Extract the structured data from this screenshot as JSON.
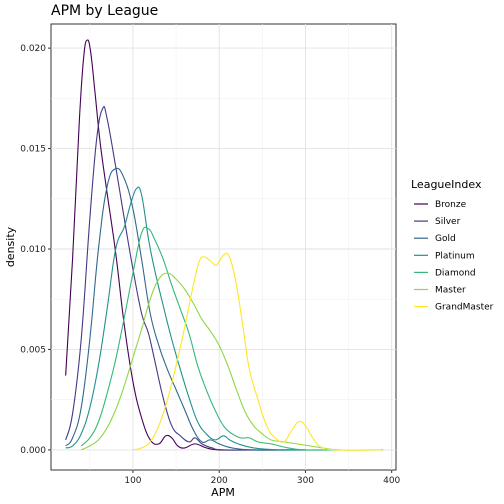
{
  "chart_data": {
    "type": "line",
    "title": "APM by League",
    "xlabel": "APM",
    "ylabel": "density",
    "xlim": [
      5,
      405
    ],
    "ylim": [
      -0.001,
      0.0212
    ],
    "xticks": [
      100,
      200,
      300,
      400
    ],
    "yticks": [
      0.0,
      0.005,
      0.01,
      0.015,
      0.02
    ],
    "ytick_labels": [
      "0.000",
      "0.005",
      "0.010",
      "0.015",
      "0.020"
    ],
    "grid": true,
    "legend": {
      "title": "LeagueIndex",
      "position": "right"
    },
    "series": [
      {
        "name": "Bronze",
        "color": "#440154",
        "points": [
          [
            22,
            0.0037
          ],
          [
            30,
            0.0095
          ],
          [
            38,
            0.0165
          ],
          [
            43,
            0.0196
          ],
          [
            47,
            0.0204
          ],
          [
            51,
            0.0198
          ],
          [
            56,
            0.0178
          ],
          [
            62,
            0.0153
          ],
          [
            70,
            0.0128
          ],
          [
            80,
            0.0098
          ],
          [
            90,
            0.0062
          ],
          [
            100,
            0.0034
          ],
          [
            110,
            0.0016
          ],
          [
            120,
            0.0005
          ],
          [
            130,
            0.0003
          ],
          [
            138,
            0.0007
          ],
          [
            145,
            0.0006
          ],
          [
            152,
            0.0002
          ],
          [
            160,
            0.0001
          ],
          [
            172,
            0.0003
          ],
          [
            185,
            0.0001
          ],
          [
            200,
            0.0
          ],
          [
            230,
            0.0
          ],
          [
            300,
            0.0
          ]
        ]
      },
      {
        "name": "Silver",
        "color": "#443983",
        "points": [
          [
            22,
            0.0005
          ],
          [
            30,
            0.0018
          ],
          [
            40,
            0.0055
          ],
          [
            50,
            0.0115
          ],
          [
            58,
            0.0155
          ],
          [
            65,
            0.017
          ],
          [
            70,
            0.0165
          ],
          [
            80,
            0.0141
          ],
          [
            90,
            0.0115
          ],
          [
            100,
            0.009
          ],
          [
            110,
            0.0068
          ],
          [
            118,
            0.0058
          ],
          [
            125,
            0.0045
          ],
          [
            135,
            0.0026
          ],
          [
            145,
            0.0012
          ],
          [
            155,
            0.0007
          ],
          [
            165,
            0.0004
          ],
          [
            172,
            0.0006
          ],
          [
            180,
            0.0003
          ],
          [
            192,
            0.0001
          ],
          [
            210,
            0.0
          ],
          [
            300,
            0.0
          ]
        ]
      },
      {
        "name": "Gold",
        "color": "#31688e",
        "points": [
          [
            22,
            0.0002
          ],
          [
            30,
            0.0006
          ],
          [
            40,
            0.0021
          ],
          [
            50,
            0.0055
          ],
          [
            60,
            0.01
          ],
          [
            70,
            0.0131
          ],
          [
            80,
            0.014
          ],
          [
            90,
            0.0135
          ],
          [
            100,
            0.012
          ],
          [
            110,
            0.0095
          ],
          [
            120,
            0.0068
          ],
          [
            130,
            0.0052
          ],
          [
            140,
            0.004
          ],
          [
            150,
            0.003
          ],
          [
            160,
            0.002
          ],
          [
            170,
            0.001
          ],
          [
            180,
            0.0004
          ],
          [
            190,
            0.0005
          ],
          [
            200,
            0.0003
          ],
          [
            215,
            0.0001
          ],
          [
            240,
            0.0
          ],
          [
            300,
            0.0
          ]
        ]
      },
      {
        "name": "Platinum",
        "color": "#21918c",
        "points": [
          [
            22,
            0.0001
          ],
          [
            30,
            0.0002
          ],
          [
            40,
            0.0008
          ],
          [
            50,
            0.0021
          ],
          [
            60,
            0.0042
          ],
          [
            70,
            0.007
          ],
          [
            80,
            0.01
          ],
          [
            90,
            0.0111
          ],
          [
            97,
            0.0122
          ],
          [
            104,
            0.013
          ],
          [
            110,
            0.0127
          ],
          [
            118,
            0.0105
          ],
          [
            125,
            0.009
          ],
          [
            135,
            0.0072
          ],
          [
            145,
            0.0055
          ],
          [
            155,
            0.004
          ],
          [
            165,
            0.0026
          ],
          [
            175,
            0.0014
          ],
          [
            185,
            0.0008
          ],
          [
            195,
            0.0005
          ],
          [
            205,
            0.0007
          ],
          [
            212,
            0.0005
          ],
          [
            222,
            0.0003
          ],
          [
            240,
            0.0001
          ],
          [
            270,
            0.0
          ],
          [
            320,
            0.0
          ]
        ]
      },
      {
        "name": "Diamond",
        "color": "#35b779",
        "points": [
          [
            40,
            0.0002
          ],
          [
            50,
            0.0006
          ],
          [
            60,
            0.0014
          ],
          [
            70,
            0.0028
          ],
          [
            80,
            0.0045
          ],
          [
            90,
            0.0066
          ],
          [
            100,
            0.0088
          ],
          [
            110,
            0.0108
          ],
          [
            118,
            0.011
          ],
          [
            125,
            0.0105
          ],
          [
            135,
            0.0095
          ],
          [
            145,
            0.0082
          ],
          [
            155,
            0.007
          ],
          [
            165,
            0.0058
          ],
          [
            175,
            0.0042
          ],
          [
            185,
            0.003
          ],
          [
            195,
            0.002
          ],
          [
            205,
            0.0012
          ],
          [
            215,
            0.0008
          ],
          [
            225,
            0.0006
          ],
          [
            235,
            0.0006
          ],
          [
            245,
            0.0004
          ],
          [
            260,
            0.0003
          ],
          [
            280,
            0.0001
          ],
          [
            300,
            0.0
          ],
          [
            340,
            0.0
          ]
        ]
      },
      {
        "name": "Master",
        "color": "#90d743",
        "points": [
          [
            40,
            0.0
          ],
          [
            50,
            0.0002
          ],
          [
            60,
            0.0005
          ],
          [
            70,
            0.0011
          ],
          [
            80,
            0.002
          ],
          [
            90,
            0.0032
          ],
          [
            100,
            0.0046
          ],
          [
            110,
            0.006
          ],
          [
            120,
            0.0075
          ],
          [
            130,
            0.0085
          ],
          [
            140,
            0.0088
          ],
          [
            150,
            0.0085
          ],
          [
            160,
            0.008
          ],
          [
            170,
            0.0073
          ],
          [
            180,
            0.0065
          ],
          [
            190,
            0.0059
          ],
          [
            200,
            0.0052
          ],
          [
            210,
            0.0042
          ],
          [
            220,
            0.003
          ],
          [
            230,
            0.0019
          ],
          [
            240,
            0.0012
          ],
          [
            250,
            0.0008
          ],
          [
            260,
            0.0005
          ],
          [
            275,
            0.0004
          ],
          [
            290,
            0.0003
          ],
          [
            305,
            0.0002
          ],
          [
            320,
            0.0001
          ],
          [
            340,
            0.0
          ],
          [
            390,
            0.0
          ]
        ]
      },
      {
        "name": "GrandMaster",
        "color": "#fde725",
        "points": [
          [
            100,
            0.0
          ],
          [
            110,
            0.0001
          ],
          [
            120,
            0.0004
          ],
          [
            130,
            0.0012
          ],
          [
            140,
            0.0025
          ],
          [
            150,
            0.0042
          ],
          [
            160,
            0.0061
          ],
          [
            170,
            0.0082
          ],
          [
            177,
            0.0094
          ],
          [
            183,
            0.0096
          ],
          [
            190,
            0.0094
          ],
          [
            197,
            0.0092
          ],
          [
            205,
            0.0097
          ],
          [
            212,
            0.0096
          ],
          [
            220,
            0.0082
          ],
          [
            228,
            0.006
          ],
          [
            235,
            0.004
          ],
          [
            245,
            0.0025
          ],
          [
            255,
            0.0012
          ],
          [
            265,
            0.0006
          ],
          [
            275,
            0.0004
          ],
          [
            283,
            0.0009
          ],
          [
            292,
            0.0014
          ],
          [
            300,
            0.0012
          ],
          [
            310,
            0.0005
          ],
          [
            320,
            0.0001
          ],
          [
            340,
            0.0
          ],
          [
            388,
            0.0
          ]
        ]
      }
    ]
  }
}
